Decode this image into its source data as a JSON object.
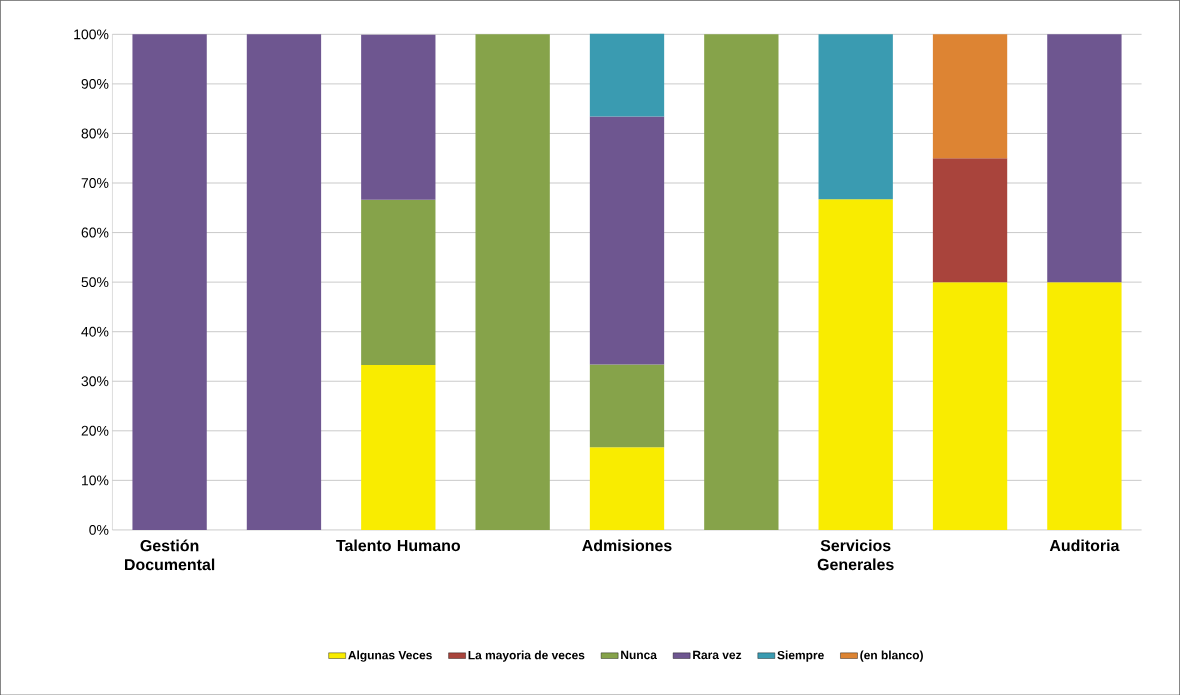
{
  "chart_data": {
    "type": "bar",
    "stacked": true,
    "categories": [
      "Gestión Documental",
      null,
      "Talento Humano",
      null,
      "Admisiones",
      null,
      "Servicios Generales",
      null,
      "Auditoria"
    ],
    "series": [
      {
        "name": "Algunas Veces",
        "color": "#f9ec00",
        "values": [
          null,
          null,
          33.3,
          null,
          16.7,
          null,
          66.7,
          50,
          50
        ]
      },
      {
        "name": "La mayoria de veces",
        "color": "#a9443c",
        "values": [
          null,
          null,
          null,
          null,
          null,
          null,
          null,
          25,
          null
        ]
      },
      {
        "name": "Nunca",
        "color": "#86a34a",
        "values": [
          null,
          null,
          33.3,
          100,
          16.7,
          100,
          null,
          null,
          null
        ]
      },
      {
        "name": "Rara vez",
        "color": "#6e5690",
        "values": [
          100,
          100,
          33.3,
          null,
          50,
          null,
          null,
          null,
          50
        ]
      },
      {
        "name": "Siempre",
        "color": "#3a9bb1",
        "values": [
          null,
          null,
          null,
          null,
          16.7,
          null,
          33.3,
          null,
          null
        ]
      },
      {
        "name": "(en blanco)",
        "color": "#dd8433",
        "values": [
          null,
          null,
          null,
          null,
          null,
          null,
          null,
          25,
          null
        ]
      }
    ],
    "ylim": [
      0,
      100
    ],
    "yticks": [
      {
        "value": 0,
        "label": "0%"
      },
      {
        "value": 10,
        "label": "10%"
      },
      {
        "value": 20,
        "label": "20%"
      },
      {
        "value": 30,
        "label": "30%"
      },
      {
        "value": 40,
        "label": "40%"
      },
      {
        "value": 50,
        "label": "50%"
      },
      {
        "value": 60,
        "label": "60%"
      },
      {
        "value": 70,
        "label": "70%"
      },
      {
        "value": 80,
        "label": "80%"
      },
      {
        "value": 90,
        "label": "90%"
      },
      {
        "value": 100,
        "label": "100%"
      }
    ],
    "grid": "y",
    "legend": "bottom"
  }
}
